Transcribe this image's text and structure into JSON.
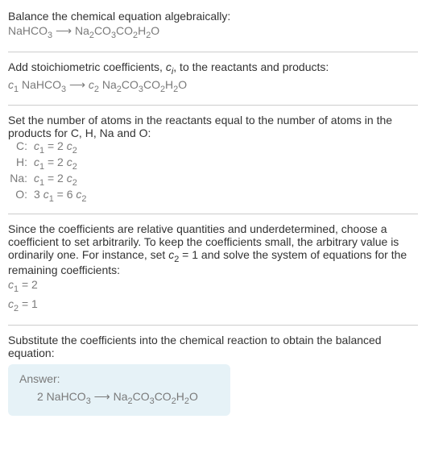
{
  "fonts": {
    "body_size_pt": 11,
    "color_text": "#333333",
    "color_sub": "#7a7a7a"
  },
  "colors": {
    "hr": "#cccccc",
    "answer_bg": "#e6f2f7"
  },
  "s1": {
    "l1_pre": "Balance the chemical equation algebraically:",
    "eq_lhs": "NaHCO",
    "eq_lhs_sub": "3",
    "arrow": " ⟶ ",
    "eq_rhs": "Na",
    "r_sub1": "2",
    "r_mid1": "CO",
    "r_sub2": "3",
    "r_mid2": "CO",
    "r_sub3": "2",
    "r_mid3": "H",
    "r_sub4": "2",
    "r_end": "O"
  },
  "s2": {
    "l1_pre": "Add stoichiometric coefficients, ",
    "ci_c": "c",
    "ci_i": "i",
    "l1_post": ", to the reactants and products:",
    "c1": "c",
    "c1s": "1",
    "sp": " NaHCO",
    "c1sub": "3",
    "arrow": " ⟶ ",
    "c2": "c",
    "c2s": "2",
    "rhs": " Na",
    "r_sub1": "2",
    "r_mid1": "CO",
    "r_sub2": "3",
    "r_mid2": "CO",
    "r_sub3": "2",
    "r_mid3": "H",
    "r_sub4": "2",
    "r_end": "O"
  },
  "s3": {
    "intro": "Set the number of atoms in the reactants equal to the number of atoms in the products for C, H, Na and O:",
    "rows": [
      {
        "label": "C:",
        "lhs_c": "c",
        "lhs_s": "1",
        "eq": " = 2 ",
        "rhs_c": "c",
        "rhs_s": "2"
      },
      {
        "label": "H:",
        "lhs_c": "c",
        "lhs_s": "1",
        "eq": " = 2 ",
        "rhs_c": "c",
        "rhs_s": "2"
      },
      {
        "label": "Na:",
        "lhs_c": "c",
        "lhs_s": "1",
        "eq": " = 2 ",
        "rhs_c": "c",
        "rhs_s": "2"
      },
      {
        "label": "O:",
        "lhs_pre": "3 ",
        "lhs_c": "c",
        "lhs_s": "1",
        "eq": " = 6 ",
        "rhs_c": "c",
        "rhs_s": "2"
      }
    ]
  },
  "s4": {
    "p_a": "Since the coefficients are relative quantities and underdetermined, choose a coefficient to set arbitrarily. To keep the coefficients small, the arbitrary value is ordinarily one. For instance, set ",
    "c2c": "c",
    "c2s": "2",
    "p_b": " = 1 and solve the system of equations for the remaining coefficients:",
    "l1_c": "c",
    "l1_s": "1",
    "l1_v": " = 2",
    "l2_c": "c",
    "l2_s": "2",
    "l2_v": " = 1"
  },
  "s5": {
    "intro": "Substitute the coefficients into the chemical reaction to obtain the balanced equation:",
    "answer_label": "Answer:",
    "coef": "2 NaHCO",
    "coef_sub": "3",
    "arrow": " ⟶ ",
    "rhs": "Na",
    "r_sub1": "2",
    "r_mid1": "CO",
    "r_sub2": "3",
    "r_mid2": "CO",
    "r_sub3": "2",
    "r_mid3": "H",
    "r_sub4": "2",
    "r_end": "O"
  }
}
